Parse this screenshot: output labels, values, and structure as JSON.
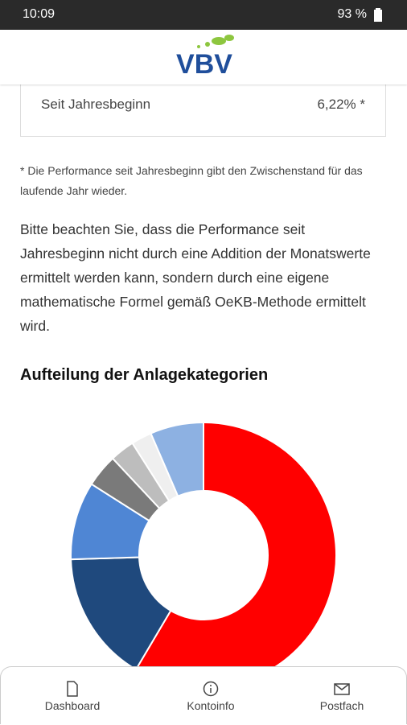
{
  "status_bar": {
    "time": "10:09",
    "battery": "93 %"
  },
  "header": {
    "logo": "VBV"
  },
  "card": {
    "label": "Seit Jahresbeginn",
    "value": "6,22% *"
  },
  "footnote": "* Die Performance seit Jahresbeginn gibt den Zwischenstand für das laufende Jahr wieder.",
  "paragraph": "Bitte beachten Sie, dass die Performance seit Jahresbeginn nicht durch eine Addition der Monatswerte ermittelt werden kann, sondern durch eine eigene mathematische Formel gemäß OeKB-Methode ermittelt wird.",
  "section_title": "Aufteilung der Anlagekategorien",
  "chart_data": {
    "type": "donut",
    "categories": [
      null,
      null,
      null,
      null,
      null,
      null,
      null
    ],
    "values": [
      58.5,
      16,
      9.5,
      4,
      3,
      2.5,
      6.5
    ],
    "colors": [
      "#ff0000",
      "#1f497d",
      "#4f86d4",
      "#7a7a7a",
      "#bdbdbd",
      "#efefef",
      "#8db1e2"
    ]
  },
  "nav": [
    {
      "label": "Dashboard"
    },
    {
      "label": "Kontoinfo"
    },
    {
      "label": "Postfach"
    }
  ]
}
